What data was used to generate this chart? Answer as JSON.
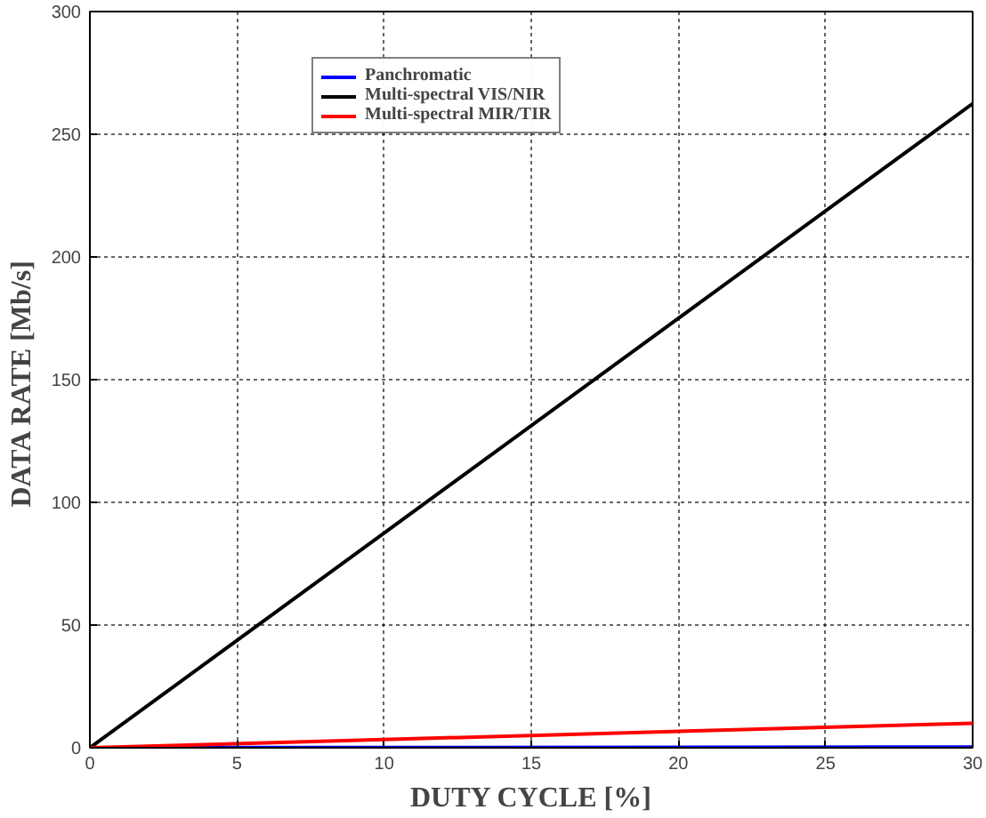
{
  "chart_data": {
    "type": "line",
    "xlabel": "DUTY CYCLE [%]",
    "ylabel": "DATA RATE  [Mb/s]",
    "x": [
      0,
      30
    ],
    "series": [
      {
        "name": "Panchromatic",
        "color": "#0000ff",
        "values": [
          0,
          0.3
        ]
      },
      {
        "name": "Multi-spectral VIS/NIR",
        "color": "#000000",
        "values": [
          0,
          262.5
        ]
      },
      {
        "name": "Multi-spectral MIR/TIR",
        "color": "#ff0000",
        "values": [
          0,
          10
        ]
      }
    ],
    "xlim": [
      0,
      30
    ],
    "ylim": [
      0,
      300
    ],
    "xticks": [
      0,
      5,
      10,
      15,
      20,
      25,
      30
    ],
    "yticks": [
      0,
      50,
      100,
      150,
      200,
      250,
      300
    ],
    "grid": true,
    "legend": "top left",
    "line_style": "solid"
  }
}
